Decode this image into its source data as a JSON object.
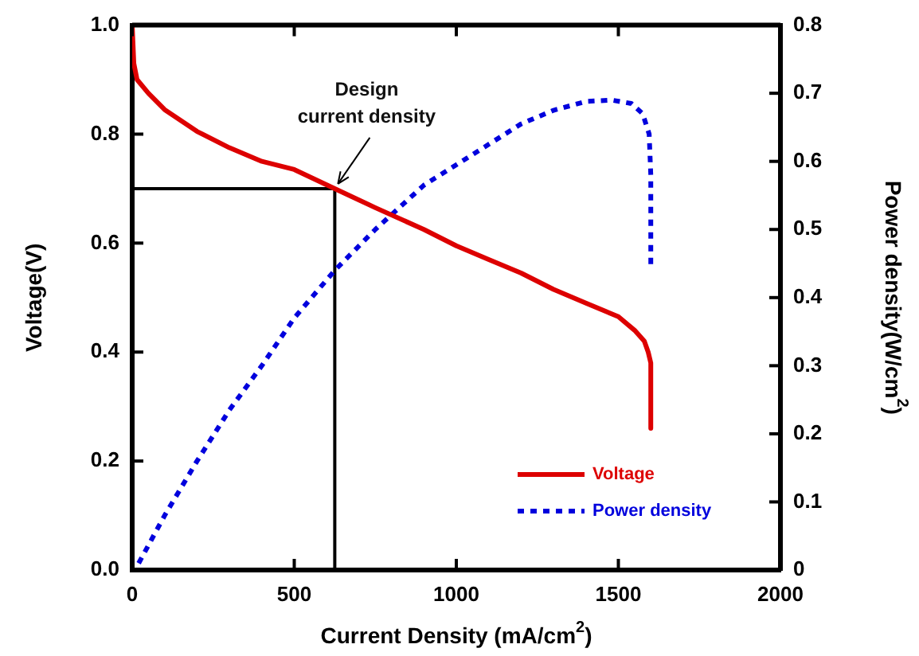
{
  "chart_data": {
    "type": "line",
    "xlabel": "Current Density (mA/cm$^{2}$)",
    "ylabel": "Voltage(V)",
    "y2label": "Power density(W/cm$^{2}$)",
    "xlim": [
      0,
      2000
    ],
    "xticks": [
      0,
      500,
      1000,
      1500,
      2000
    ],
    "ylim": [
      0,
      1
    ],
    "yticks": [
      {
        "value": 0,
        "label": "0.0"
      },
      0.2,
      0.4,
      0.6,
      0.8,
      {
        "value": 1,
        "label": "1.0"
      }
    ],
    "y2lim": [
      0,
      0.8
    ],
    "y2ticks": [
      0,
      0.1,
      0.2,
      0.3,
      0.4,
      0.5,
      0.6,
      0.7,
      0.8
    ],
    "grid": false,
    "legend": "bottom right",
    "marker": "none",
    "annotations": [
      {
        "text": "Design\ncurrent density",
        "x": 625,
        "y": 0.7
      }
    ],
    "series": [
      {
        "name": "Voltage",
        "color": "#dd0000",
        "line_style": "solid",
        "x": [
          0,
          5,
          15,
          50,
          100,
          200,
          300,
          400,
          500,
          625,
          750,
          900,
          1000,
          1100,
          1200,
          1300,
          1400,
          1500,
          1550,
          1580,
          1592,
          1600,
          1600
        ],
        "values": [
          1.0,
          0.93,
          0.9,
          0.875,
          0.845,
          0.805,
          0.775,
          0.75,
          0.735,
          0.7,
          0.665,
          0.625,
          0.595,
          0.57,
          0.545,
          0.515,
          0.49,
          0.465,
          0.44,
          0.42,
          0.4,
          0.38,
          0.26
        ]
      },
      {
        "name": "Power density",
        "color": "#0000dd",
        "line_style": "dotted",
        "axis": "y2",
        "x": [
          20,
          100,
          200,
          300,
          400,
          500,
          625,
          750,
          900,
          1000,
          1100,
          1200,
          1300,
          1400,
          1480,
          1540,
          1575,
          1595,
          1600,
          1600
        ],
        "values": [
          0.01,
          0.08,
          0.16,
          0.235,
          0.3,
          0.37,
          0.44,
          0.5,
          0.565,
          0.595,
          0.625,
          0.655,
          0.675,
          0.688,
          0.69,
          0.685,
          0.67,
          0.64,
          0.58,
          0.44
        ]
      },
      {
        "color": "#000000",
        "line_style": "solid",
        "x": [
          0,
          625,
          625
        ],
        "values": [
          0.7,
          0.7,
          0
        ]
      }
    ]
  }
}
